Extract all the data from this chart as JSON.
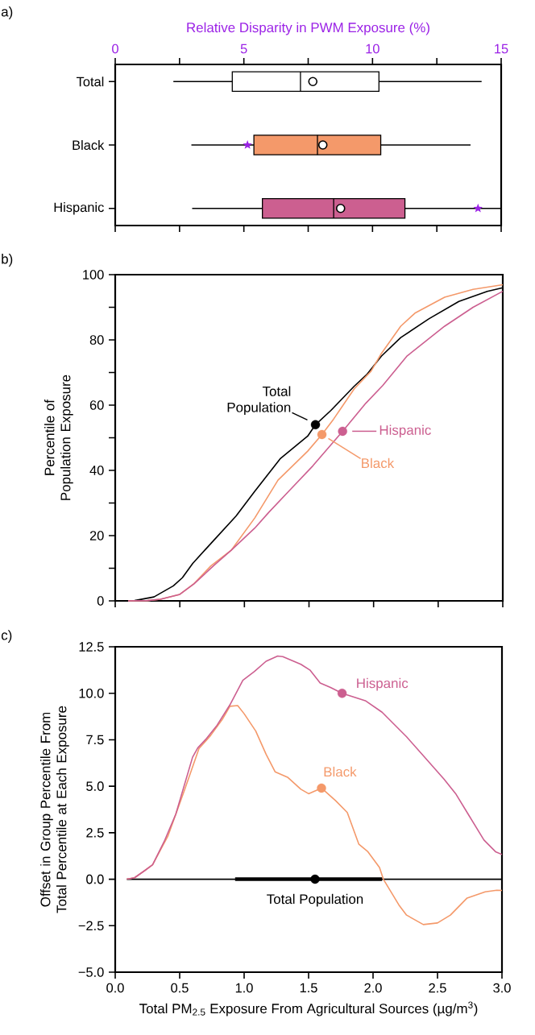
{
  "chart_data": [
    {
      "type": "box",
      "orientation": "horizontal",
      "xlabel": "Relative Disparity in PWM Exposure (%)",
      "annotations": [
        "a)"
      ],
      "categories": [
        "Total",
        "Black",
        "Hispanic"
      ],
      "boxes": [
        {
          "low": 2.26,
          "q1": 4.55,
          "median": 7.2,
          "q3": 10.25,
          "high": 14.24,
          "mean": 7.68
        },
        {
          "low": 2.96,
          "q1": 5.39,
          "median": 7.86,
          "q3": 10.32,
          "high": 13.81,
          "mean": 8.07
        },
        {
          "low": 2.99,
          "q1": 5.72,
          "median": 8.49,
          "q3": 11.26,
          "high": 15,
          "mean": 8.76
        }
      ],
      "colors": [
        "#ffffff",
        "#f4996a",
        "#cc5f90"
      ],
      "series": [
        {
          "type": "scatter",
          "marker": "star",
          "color": "#9b22e6",
          "x": [
            "Black",
            "Hispanic"
          ],
          "values": [
            5.14,
            14.1
          ]
        }
      ],
      "xlim": [
        0,
        15
      ],
      "xticks": [
        0,
        {
          "value": 2.5,
          "label": null
        },
        5,
        {
          "value": 7.5,
          "label": null
        },
        10,
        {
          "value": 12.5,
          "label": null
        },
        15
      ]
    },
    {
      "type": "line",
      "ylabel": "Percentile of Population Exposure",
      "annotations": [
        "b)"
      ],
      "tick_labels": "y",
      "xlim": [
        0,
        3
      ],
      "xticks": [
        0,
        0.5,
        1,
        1.5,
        2,
        2.5,
        3
      ],
      "ylim": [
        0,
        100
      ],
      "yticks": [
        0,
        {
          "value": 10,
          "label": null
        },
        20,
        {
          "value": 30,
          "label": null
        },
        40,
        {
          "value": 50,
          "label": null
        },
        60,
        {
          "value": 70,
          "label": null
        },
        80,
        {
          "value": 90,
          "label": null
        },
        100
      ],
      "series": [
        {
          "color": "#000000",
          "x": [
            0,
            0.15,
            0.3,
            0.45,
            0.52,
            0.6,
            0.75,
            0.935,
            1.08,
            1.28,
            1.49,
            1.55,
            1.67,
            1.85,
            1.95,
            2.06,
            2.21,
            2.43,
            2.66,
            2.88,
            3.0
          ],
          "values": [
            0,
            0.1,
            1.2,
            4.6,
            7.1,
            11.5,
            18,
            26,
            33.6,
            43.7,
            50.5,
            54,
            58.4,
            65.8,
            69.5,
            75,
            80.7,
            86.5,
            91.8,
            94.9,
            96
          ]
        },
        {
          "color": "#f4996a",
          "x": [
            0.1,
            0.25,
            0.35,
            0.5,
            0.61,
            0.74,
            0.9,
            1.08,
            1.26,
            1.49,
            1.6,
            1.69,
            1.85,
            1.98,
            2.06,
            2.21,
            2.32,
            2.55,
            2.77,
            3.0
          ],
          "values": [
            0,
            0.1,
            0.5,
            2,
            5.3,
            10.7,
            15.6,
            25.4,
            37,
            45.9,
            51,
            55.7,
            65,
            70.4,
            75.8,
            84.2,
            88.2,
            93.1,
            95.5,
            96.9
          ]
        },
        {
          "color": "#cc5f90",
          "x": [
            0.1,
            0.25,
            0.35,
            0.5,
            0.61,
            0.77,
            0.9,
            1.08,
            1.19,
            1.35,
            1.53,
            1.76,
            1.94,
            2.07,
            2.26,
            2.55,
            2.77,
            3.0
          ],
          "values": [
            0,
            0.1,
            0.5,
            2,
            5.2,
            11.1,
            15.6,
            22.3,
            27.2,
            33.9,
            41.4,
            52,
            60.6,
            66,
            75.1,
            84.2,
            90,
            94.9
          ]
        },
        {
          "type": "scatter",
          "marker": "circle",
          "name": "Total Population",
          "color": "#000000",
          "x": [
            1.55
          ],
          "values": [
            54
          ]
        },
        {
          "type": "scatter",
          "marker": "circle",
          "name": "Black",
          "color": "#f4996a",
          "x": [
            1.6
          ],
          "values": [
            51
          ]
        },
        {
          "type": "scatter",
          "marker": "circle",
          "name": "Hispanic",
          "color": "#cc5f90",
          "x": [
            1.76
          ],
          "values": [
            52
          ]
        }
      ]
    },
    {
      "type": "line",
      "ylabel": "Offset in Group Percentile From Total Percentile at Each Exposure",
      "xlabel": "Total PM$_{2.5}$ Exposure From Agricultural Sources (µg/m$^{3}$)",
      "annotations": [
        "c)"
      ],
      "xlim": [
        0,
        3
      ],
      "xticks": [
        {
          "value": 0,
          "label": "0.0"
        },
        {
          "value": 0.5,
          "label": "0.5"
        },
        {
          "value": 1,
          "label": "1.0"
        },
        {
          "value": 1.5,
          "label": "1.5"
        },
        {
          "value": 2,
          "label": "2.0"
        },
        {
          "value": 2.5,
          "label": "2.5"
        },
        {
          "value": 3,
          "label": "3.0"
        }
      ],
      "ylim": [
        -5,
        12.5
      ],
      "yticks": [
        {
          "value": -5,
          "label": "−5.0"
        },
        {
          "value": -2.5,
          "label": "−2.5"
        },
        {
          "value": 0,
          "label": "0.0"
        },
        {
          "value": 2.5,
          "label": "2.5"
        },
        {
          "value": 5,
          "label": "5.0"
        },
        {
          "value": 7.5,
          "label": "7.5"
        },
        {
          "value": 10,
          "label": "10.0"
        },
        {
          "value": 12.5,
          "label": "12.5"
        }
      ],
      "series": [
        {
          "color": "#000000",
          "x": [
            0.09,
            3.0
          ],
          "values": [
            0,
            0
          ]
        },
        {
          "color": "#f4996a",
          "x": [
            0.09,
            0.15,
            0.23,
            0.29,
            0.41,
            0.54,
            0.65,
            0.74,
            0.83,
            0.89,
            0.95,
            1.0,
            1.09,
            1.17,
            1.24,
            1.34,
            1.44,
            1.5,
            1.6,
            1.71,
            1.8,
            1.89,
            1.96,
            2.05,
            2.08,
            2.2,
            2.26,
            2.39,
            2.5,
            2.6,
            2.73,
            2.87,
            2.96,
            3.0
          ],
          "values": [
            0,
            0.08,
            0.47,
            0.78,
            2.34,
            4.84,
            7.03,
            7.73,
            8.59,
            9.3,
            9.34,
            8.9,
            7.97,
            6.72,
            5.78,
            5.47,
            4.84,
            4.6,
            4.9,
            4.22,
            3.59,
            1.88,
            1.48,
            0.63,
            0,
            -1.38,
            -1.93,
            -2.44,
            -2.35,
            -1.93,
            -1.01,
            -0.68,
            -0.59,
            -0.6
          ]
        },
        {
          "color": "#cc5f90",
          "x": [
            0.09,
            0.15,
            0.23,
            0.29,
            0.38,
            0.47,
            0.6,
            0.64,
            0.71,
            0.79,
            0.89,
            0.99,
            1.08,
            1.17,
            1.26,
            1.3,
            1.44,
            1.51,
            1.59,
            1.67,
            1.76,
            1.94,
            2.07,
            2.26,
            2.39,
            2.55,
            2.64,
            2.75,
            2.86,
            2.95,
            3.0
          ],
          "values": [
            0,
            0.08,
            0.47,
            0.78,
            2.03,
            3.5,
            6.56,
            7.06,
            7.58,
            8.28,
            9.38,
            10.7,
            11.17,
            11.72,
            12.0,
            11.97,
            11.56,
            11.25,
            10.55,
            10.31,
            10.0,
            9.6,
            8.98,
            7.66,
            6.64,
            5.39,
            4.61,
            3.36,
            2.11,
            1.48,
            1.33
          ]
        },
        {
          "type": "scatter",
          "marker": "circle",
          "name": "Total Population",
          "color": "#000000",
          "x": [
            1.55
          ],
          "values": [
            0
          ],
          "xerrors": [
            [
              0.93,
              2.07
            ]
          ]
        },
        {
          "type": "scatter",
          "marker": "circle",
          "name": "Black",
          "color": "#f4996a",
          "x": [
            1.6
          ],
          "values": [
            4.9
          ]
        },
        {
          "type": "scatter",
          "marker": "circle",
          "name": "Hispanic",
          "color": "#cc5f90",
          "x": [
            1.76
          ],
          "values": [
            10.0
          ]
        }
      ]
    }
  ]
}
